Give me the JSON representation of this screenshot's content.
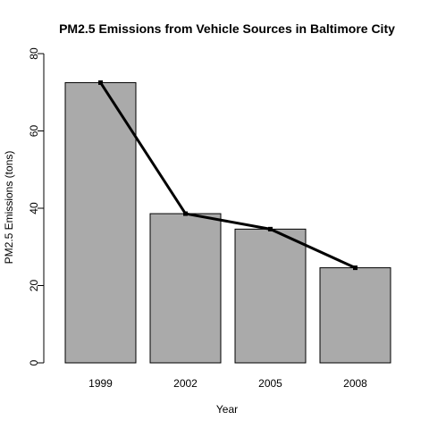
{
  "chart_data": {
    "type": "bar",
    "title": "PM2.5 Emissions from Vehicle Sources in Baltimore City",
    "xlabel": "Year",
    "ylabel": "PM2.5 Emissions (tons)",
    "categories": [
      "1999",
      "2002",
      "2005",
      "2008"
    ],
    "values": [
      72.5,
      38.6,
      34.6,
      24.6
    ],
    "ylim": [
      0,
      80
    ],
    "yticks": [
      0,
      20,
      40,
      60,
      80
    ],
    "overlay_line": true,
    "grid": false,
    "bar_color": "#aaaaaa",
    "line_color": "#000000"
  }
}
